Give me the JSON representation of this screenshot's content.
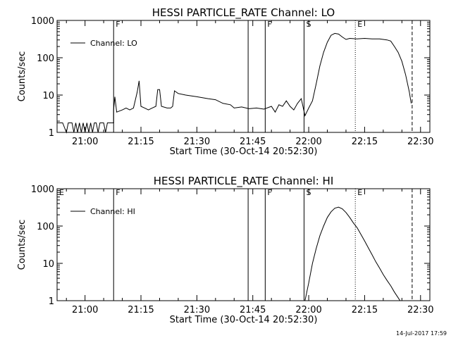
{
  "footer_date": "14-Jul-2017 17:59",
  "chart_data": [
    {
      "type": "line",
      "title": "HESSI PARTICLE_RATE Channel: LO",
      "xlabel": "Start Time (30-Oct-14 20:52:30)",
      "ylabel": "Counts/sec",
      "yscale": "log",
      "ylim": [
        1,
        1000
      ],
      "xlim": [
        "20:52:30",
        "22:32:30"
      ],
      "ytick_labels": [
        "1",
        "10",
        "100",
        "1000"
      ],
      "xtick_labels": [
        "21:00",
        "21:15",
        "21:30",
        "21:45",
        "22:00",
        "22:15",
        "22:30"
      ],
      "legend": "top-left",
      "series": [
        {
          "name": "Channel: LO",
          "color": "#000000",
          "points": [
            [
              "20:52:30",
              1.8
            ],
            [
              "20:54:00",
              1.8
            ],
            [
              "20:55:00",
              1.0
            ],
            [
              "20:55:30",
              1.8
            ],
            [
              "20:56:30",
              1.8
            ],
            [
              "20:57:00",
              1.0
            ],
            [
              "20:57:30",
              1.8
            ],
            [
              "20:58:00",
              1.0
            ],
            [
              "20:58:30",
              1.8
            ],
            [
              "20:59:00",
              1.0
            ],
            [
              "20:59:30",
              1.8
            ],
            [
              "21:00:00",
              1.0
            ],
            [
              "21:00:30",
              1.8
            ],
            [
              "21:01:00",
              1.0
            ],
            [
              "21:01:30",
              1.8
            ],
            [
              "21:02:00",
              1.0
            ],
            [
              "21:02:30",
              1.8
            ],
            [
              "21:03:00",
              1.8
            ],
            [
              "21:03:30",
              1.0
            ],
            [
              "21:04:00",
              1.8
            ],
            [
              "21:05:00",
              1.8
            ],
            [
              "21:05:30",
              1.0
            ],
            [
              "21:06:00",
              1.8
            ],
            [
              "21:07:40",
              1.8
            ],
            [
              "21:07:40",
              4.0
            ],
            [
              "21:08:00",
              9.0
            ],
            [
              "21:08:30",
              3.5
            ],
            [
              "21:10:00",
              4.0
            ],
            [
              "21:11:00",
              4.5
            ],
            [
              "21:12:00",
              4.0
            ],
            [
              "21:13:00",
              4.5
            ],
            [
              "21:14:00",
              12.0
            ],
            [
              "21:14:30",
              24.0
            ],
            [
              "21:15:00",
              5.0
            ],
            [
              "21:16:00",
              4.5
            ],
            [
              "21:17:00",
              4.0
            ],
            [
              "21:18:00",
              4.5
            ],
            [
              "21:19:00",
              5.0
            ],
            [
              "21:19:30",
              14.0
            ],
            [
              "21:20:00",
              14.0
            ],
            [
              "21:20:30",
              5.0
            ],
            [
              "21:22:00",
              4.5
            ],
            [
              "21:23:00",
              4.5
            ],
            [
              "21:23:30",
              5.0
            ],
            [
              "21:24:00",
              13.0
            ],
            [
              "21:25:00",
              11.0
            ],
            [
              "21:27:00",
              10.0
            ],
            [
              "21:30:00",
              9.0
            ],
            [
              "21:33:00",
              8.0
            ],
            [
              "21:35:00",
              7.5
            ],
            [
              "21:37:00",
              6.0
            ],
            [
              "21:39:00",
              5.5
            ],
            [
              "21:40:00",
              4.5
            ],
            [
              "21:42:00",
              4.8
            ],
            [
              "21:44:00",
              4.3
            ],
            [
              "21:46:00",
              4.5
            ],
            [
              "21:48:00",
              4.2
            ],
            [
              "21:50:00",
              5.0
            ],
            [
              "21:51:00",
              3.5
            ],
            [
              "21:52:00",
              5.5
            ],
            [
              "21:53:00",
              5.0
            ],
            [
              "21:54:00",
              7.0
            ],
            [
              "21:55:00",
              5.0
            ],
            [
              "21:56:00",
              4.0
            ],
            [
              "21:57:00",
              6.0
            ],
            [
              "21:58:00",
              8.0
            ],
            [
              "21:59:00",
              2.8
            ],
            [
              "22:00:00",
              4.5
            ],
            [
              "22:01:00",
              7.0
            ],
            [
              "22:02:00",
              20.0
            ],
            [
              "22:03:00",
              60.0
            ],
            [
              "22:04:00",
              140.0
            ],
            [
              "22:05:00",
              260.0
            ],
            [
              "22:06:00",
              400.0
            ],
            [
              "22:07:00",
              450.0
            ],
            [
              "22:08:00",
              430.0
            ],
            [
              "22:09:00",
              360.0
            ],
            [
              "22:10:00",
              310.0
            ],
            [
              "22:11:00",
              330.0
            ],
            [
              "22:13:00",
              320.0
            ],
            [
              "22:15:00",
              330.0
            ],
            [
              "22:17:00",
              320.0
            ],
            [
              "22:19:00",
              320.0
            ],
            [
              "22:21:00",
              300.0
            ],
            [
              "22:22:00",
              280.0
            ],
            [
              "22:23:00",
              200.0
            ],
            [
              "22:24:00",
              140.0
            ],
            [
              "22:25:00",
              80.0
            ],
            [
              "22:26:00",
              35.0
            ],
            [
              "22:27:00",
              12.0
            ],
            [
              "22:27:30",
              6.0
            ]
          ]
        }
      ],
      "markers": [
        {
          "label": "F",
          "time": "21:07:40",
          "style": "solid"
        },
        {
          "label": "",
          "time": "21:43:45",
          "style": "solid"
        },
        {
          "label": "F",
          "time": "21:48:20",
          "style": "solid"
        },
        {
          "label": "S",
          "time": "21:58:45",
          "style": "solid"
        },
        {
          "label": "E",
          "time": "22:12:30",
          "style": "dotted"
        },
        {
          "label": "",
          "time": "22:27:45",
          "style": "dashed"
        }
      ]
    },
    {
      "type": "line",
      "title": "HESSI PARTICLE_RATE Channel: HI",
      "xlabel": "Start Time (30-Oct-14 20:52:30)",
      "ylabel": "Counts/sec",
      "yscale": "log",
      "ylim": [
        1,
        1000
      ],
      "xlim": [
        "20:52:30",
        "22:32:30"
      ],
      "ytick_labels": [
        "1",
        "10",
        "100",
        "1000"
      ],
      "xtick_labels": [
        "21:00",
        "21:15",
        "21:30",
        "21:45",
        "22:00",
        "22:15",
        "22:30"
      ],
      "legend": "top-left",
      "series": [
        {
          "name": "Channel: HI",
          "color": "#000000",
          "points": [
            [
              "21:59:00",
              1.0
            ],
            [
              "22:00:00",
              3.0
            ],
            [
              "22:01:00",
              10.0
            ],
            [
              "22:02:00",
              25.0
            ],
            [
              "22:03:00",
              55.0
            ],
            [
              "22:04:00",
              100.0
            ],
            [
              "22:05:00",
              170.0
            ],
            [
              "22:06:00",
              240.0
            ],
            [
              "22:07:00",
              300.0
            ],
            [
              "22:08:00",
              320.0
            ],
            [
              "22:09:00",
              290.0
            ],
            [
              "22:10:00",
              230.0
            ],
            [
              "22:11:00",
              170.0
            ],
            [
              "22:12:00",
              120.0
            ],
            [
              "22:13:00",
              90.0
            ],
            [
              "22:14:00",
              60.0
            ],
            [
              "22:15:00",
              40.0
            ],
            [
              "22:16:00",
              26.0
            ],
            [
              "22:17:00",
              17.0
            ],
            [
              "22:18:00",
              11.0
            ],
            [
              "22:19:00",
              7.5
            ],
            [
              "22:20:00",
              5.0
            ],
            [
              "22:21:00",
              3.5
            ],
            [
              "22:22:00",
              2.5
            ],
            [
              "22:23:00",
              1.7
            ],
            [
              "22:24:00",
              1.2
            ],
            [
              "22:24:30",
              1.0
            ]
          ]
        }
      ],
      "markers": [
        {
          "label": "E",
          "time": "20:52:30",
          "style": "solid"
        },
        {
          "label": "F",
          "time": "21:07:40",
          "style": "solid"
        },
        {
          "label": "",
          "time": "21:43:45",
          "style": "solid"
        },
        {
          "label": "F",
          "time": "21:48:20",
          "style": "solid"
        },
        {
          "label": "S",
          "time": "21:58:45",
          "style": "solid"
        },
        {
          "label": "E",
          "time": "22:12:30",
          "style": "dotted"
        },
        {
          "label": "",
          "time": "22:27:45",
          "style": "dashed"
        }
      ]
    }
  ]
}
